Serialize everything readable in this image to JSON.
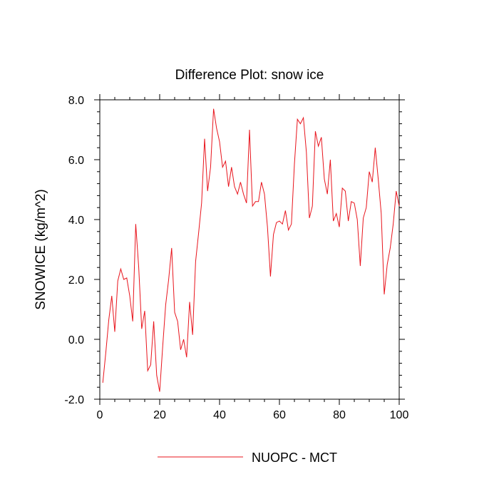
{
  "chart_data": {
    "type": "line",
    "title": "Difference Plot: snow ice",
    "xlabel": "",
    "ylabel": "SNOWICE  (kg/m^2)",
    "xlim": [
      0,
      100
    ],
    "ylim": [
      -2.0,
      8.0
    ],
    "x_ticks": [
      0,
      20,
      40,
      60,
      80,
      100
    ],
    "x_tick_labels": [
      "0",
      "20",
      "40",
      "60",
      "80",
      "100"
    ],
    "y_ticks": [
      -2.0,
      0.0,
      2.0,
      4.0,
      6.0,
      8.0
    ],
    "y_tick_labels": [
      "-2.0",
      "0.0",
      "2.0",
      "4.0",
      "6.0",
      "8.0"
    ],
    "grid": false,
    "legend_position": "bottom-center",
    "series": [
      {
        "name": "NUOPC - MCT",
        "color": "#e8141c",
        "x": [
          1,
          2,
          3,
          4,
          5,
          6,
          7,
          8,
          9,
          10,
          11,
          12,
          13,
          14,
          15,
          16,
          17,
          18,
          19,
          20,
          21,
          22,
          23,
          24,
          25,
          26,
          27,
          28,
          29,
          30,
          31,
          32,
          33,
          34,
          35,
          36,
          37,
          38,
          39,
          40,
          41,
          42,
          43,
          44,
          45,
          46,
          47,
          48,
          49,
          50,
          51,
          52,
          53,
          54,
          55,
          56,
          57,
          58,
          59,
          60,
          61,
          62,
          63,
          64,
          65,
          66,
          67,
          68,
          69,
          70,
          71,
          72,
          73,
          74,
          75,
          76,
          77,
          78,
          79,
          80,
          81,
          82,
          83,
          84,
          85,
          86,
          87,
          88,
          89,
          90,
          91,
          92,
          93,
          94,
          95,
          96,
          97,
          98,
          99,
          100
        ],
        "values": [
          -1.45,
          -0.45,
          0.65,
          1.45,
          0.25,
          1.95,
          2.35,
          2.0,
          2.05,
          1.45,
          0.6,
          3.85,
          2.4,
          0.35,
          0.95,
          -1.05,
          -0.85,
          0.6,
          -1.2,
          -1.75,
          -0.25,
          1.15,
          2.0,
          3.05,
          0.9,
          0.6,
          -0.35,
          0.0,
          -0.6,
          1.25,
          0.15,
          2.6,
          3.55,
          4.55,
          6.7,
          4.95,
          5.75,
          7.7,
          7.05,
          6.6,
          5.75,
          5.95,
          5.1,
          5.75,
          5.1,
          4.85,
          5.25,
          4.85,
          4.55,
          7.0,
          4.45,
          4.6,
          4.6,
          5.25,
          4.85,
          3.75,
          2.1,
          3.5,
          3.9,
          3.95,
          3.85,
          4.3,
          3.65,
          3.85,
          5.85,
          7.35,
          7.2,
          7.4,
          6.25,
          4.05,
          4.45,
          6.95,
          6.45,
          6.75,
          5.35,
          4.85,
          6.0,
          3.95,
          4.2,
          3.75,
          5.05,
          4.95,
          3.95,
          4.6,
          4.55,
          4.0,
          2.45,
          4.05,
          4.4,
          5.6,
          5.25,
          6.4,
          5.35,
          4.2,
          1.5,
          2.5,
          3.05,
          3.85,
          4.95,
          4.45
        ]
      }
    ]
  }
}
